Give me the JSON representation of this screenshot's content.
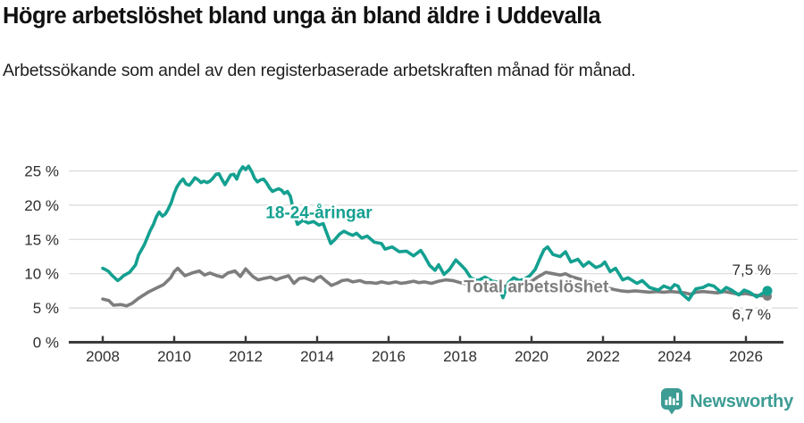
{
  "page": {
    "title": "Högre arbetslöshet bland unga än bland äldre i Uddevalla",
    "subtitle": "Arbetssökande som andel av den registerbaserade arbetskraften månad för månad."
  },
  "branding": {
    "name": "Newsworthy",
    "icon": "newsworthy-speech-bubble-barchart-icon",
    "color": "#3d9c94"
  },
  "chart_data": {
    "type": "line",
    "title": "Högre arbetslöshet bland unga än bland äldre i Uddevalla",
    "subtitle": "Arbetssökande som andel av den registerbaserade arbetskraften månad för månad.",
    "unit": "%",
    "grid": "horizontal",
    "legend": "inline-labels",
    "x_axis": {
      "ticks": [
        2008,
        2010,
        2012,
        2014,
        2016,
        2018,
        2020,
        2022,
        2024,
        2026
      ],
      "range": [
        2007.1,
        2027.1
      ]
    },
    "y_axis": {
      "ticks": [
        0,
        5,
        10,
        15,
        20,
        25
      ],
      "labels": [
        "0 %",
        "5 %",
        "10 %",
        "15 %",
        "20 %",
        "25 %"
      ],
      "range": [
        0,
        27
      ]
    },
    "series": [
      {
        "name": "Total arbetslöshet",
        "color": "#7d7d7d",
        "end_value": 6.7,
        "end_label": "6,7 %",
        "inline_label": {
          "x": 2020.13,
          "y": 8.1
        },
        "points": [
          [
            2008.0,
            6.3
          ],
          [
            2008.17,
            6.1
          ],
          [
            2008.3,
            5.4
          ],
          [
            2008.5,
            5.5
          ],
          [
            2008.67,
            5.3
          ],
          [
            2008.83,
            5.7
          ],
          [
            2009.0,
            6.4
          ],
          [
            2009.3,
            7.4
          ],
          [
            2009.7,
            8.4
          ],
          [
            2009.9,
            9.4
          ],
          [
            2010.0,
            10.3
          ],
          [
            2010.1,
            10.8
          ],
          [
            2010.3,
            9.7
          ],
          [
            2010.5,
            10.1
          ],
          [
            2010.7,
            10.4
          ],
          [
            2010.85,
            9.8
          ],
          [
            2011.0,
            10.1
          ],
          [
            2011.2,
            9.7
          ],
          [
            2011.35,
            9.5
          ],
          [
            2011.5,
            10.1
          ],
          [
            2011.7,
            10.4
          ],
          [
            2011.85,
            9.6
          ],
          [
            2012.0,
            10.7
          ],
          [
            2012.2,
            9.6
          ],
          [
            2012.35,
            9.1
          ],
          [
            2012.5,
            9.3
          ],
          [
            2012.7,
            9.5
          ],
          [
            2012.85,
            9.1
          ],
          [
            2013.0,
            9.4
          ],
          [
            2013.2,
            9.7
          ],
          [
            2013.35,
            8.6
          ],
          [
            2013.5,
            9.3
          ],
          [
            2013.65,
            9.4
          ],
          [
            2013.8,
            9.1
          ],
          [
            2013.9,
            8.9
          ],
          [
            2014.0,
            9.4
          ],
          [
            2014.1,
            9.6
          ],
          [
            2014.25,
            8.9
          ],
          [
            2014.4,
            8.3
          ],
          [
            2014.55,
            8.6
          ],
          [
            2014.7,
            9.0
          ],
          [
            2014.85,
            9.1
          ],
          [
            2015.0,
            8.8
          ],
          [
            2015.2,
            9.0
          ],
          [
            2015.35,
            8.7
          ],
          [
            2015.5,
            8.7
          ],
          [
            2015.65,
            8.6
          ],
          [
            2015.8,
            8.8
          ],
          [
            2016.0,
            8.6
          ],
          [
            2016.2,
            8.8
          ],
          [
            2016.35,
            8.6
          ],
          [
            2016.5,
            8.7
          ],
          [
            2016.7,
            8.9
          ],
          [
            2016.85,
            8.7
          ],
          [
            2017.0,
            8.8
          ],
          [
            2017.2,
            8.6
          ],
          [
            2017.4,
            8.9
          ],
          [
            2017.6,
            9.1
          ],
          [
            2017.8,
            9.0
          ],
          [
            2018.0,
            8.7
          ],
          [
            2018.2,
            8.5
          ],
          [
            2018.4,
            8.6
          ],
          [
            2018.6,
            8.4
          ],
          [
            2018.8,
            8.5
          ],
          [
            2019.0,
            8.3
          ],
          [
            2019.2,
            8.1
          ],
          [
            2019.4,
            8.4
          ],
          [
            2019.6,
            8.3
          ],
          [
            2019.8,
            8.6
          ],
          [
            2020.0,
            8.9
          ],
          [
            2020.2,
            9.6
          ],
          [
            2020.4,
            10.2
          ],
          [
            2020.6,
            10.0
          ],
          [
            2020.8,
            9.8
          ],
          [
            2020.95,
            10.0
          ],
          [
            2021.1,
            9.6
          ],
          [
            2021.3,
            9.3
          ],
          [
            2021.5,
            9.0
          ],
          [
            2021.7,
            8.7
          ],
          [
            2021.9,
            8.4
          ],
          [
            2022.1,
            8.0
          ],
          [
            2022.3,
            7.7
          ],
          [
            2022.5,
            7.5
          ],
          [
            2022.7,
            7.4
          ],
          [
            2022.9,
            7.5
          ],
          [
            2023.1,
            7.4
          ],
          [
            2023.3,
            7.3
          ],
          [
            2023.5,
            7.4
          ],
          [
            2023.7,
            7.3
          ],
          [
            2023.9,
            7.4
          ],
          [
            2024.1,
            7.3
          ],
          [
            2024.3,
            7.2
          ],
          [
            2024.45,
            7.0
          ],
          [
            2024.6,
            7.3
          ],
          [
            2024.8,
            7.4
          ],
          [
            2025.0,
            7.3
          ],
          [
            2025.2,
            7.2
          ],
          [
            2025.4,
            7.4
          ],
          [
            2025.6,
            7.2
          ],
          [
            2025.8,
            7.0
          ],
          [
            2026.0,
            7.1
          ],
          [
            2026.2,
            6.9
          ],
          [
            2026.4,
            6.8
          ],
          [
            2026.6,
            6.7
          ]
        ]
      },
      {
        "name": "18-24-åringar",
        "color": "#14a090",
        "end_value": 7.5,
        "end_label": "7,5 %",
        "inline_label": {
          "x": 2014.05,
          "y": 18.9
        },
        "points": [
          [
            2008.0,
            10.8
          ],
          [
            2008.08,
            10.6
          ],
          [
            2008.17,
            10.3
          ],
          [
            2008.25,
            9.8
          ],
          [
            2008.42,
            9.0
          ],
          [
            2008.5,
            9.3
          ],
          [
            2008.58,
            9.7
          ],
          [
            2008.75,
            10.2
          ],
          [
            2008.92,
            11.3
          ],
          [
            2009.0,
            12.7
          ],
          [
            2009.17,
            14.3
          ],
          [
            2009.33,
            16.3
          ],
          [
            2009.42,
            17.2
          ],
          [
            2009.5,
            18.3
          ],
          [
            2009.58,
            19.0
          ],
          [
            2009.67,
            18.4
          ],
          [
            2009.75,
            18.7
          ],
          [
            2009.83,
            19.4
          ],
          [
            2009.92,
            20.4
          ],
          [
            2010.0,
            21.7
          ],
          [
            2010.08,
            22.7
          ],
          [
            2010.17,
            23.4
          ],
          [
            2010.25,
            23.8
          ],
          [
            2010.33,
            23.1
          ],
          [
            2010.42,
            22.9
          ],
          [
            2010.5,
            23.4
          ],
          [
            2010.58,
            24.0
          ],
          [
            2010.67,
            23.7
          ],
          [
            2010.75,
            23.3
          ],
          [
            2010.83,
            23.5
          ],
          [
            2010.92,
            23.3
          ],
          [
            2011.0,
            23.5
          ],
          [
            2011.08,
            23.9
          ],
          [
            2011.17,
            24.5
          ],
          [
            2011.25,
            24.6
          ],
          [
            2011.33,
            23.8
          ],
          [
            2011.42,
            23.0
          ],
          [
            2011.5,
            23.7
          ],
          [
            2011.58,
            24.4
          ],
          [
            2011.67,
            24.5
          ],
          [
            2011.75,
            23.8
          ],
          [
            2011.83,
            24.9
          ],
          [
            2011.92,
            25.6
          ],
          [
            2012.0,
            25.2
          ],
          [
            2012.08,
            25.7
          ],
          [
            2012.17,
            24.9
          ],
          [
            2012.25,
            23.9
          ],
          [
            2012.33,
            23.4
          ],
          [
            2012.42,
            23.7
          ],
          [
            2012.5,
            23.8
          ],
          [
            2012.58,
            23.3
          ],
          [
            2012.67,
            22.5
          ],
          [
            2012.75,
            22.0
          ],
          [
            2012.83,
            22.2
          ],
          [
            2012.92,
            22.4
          ],
          [
            2013.0,
            22.2
          ],
          [
            2013.08,
            21.7
          ],
          [
            2013.17,
            22.0
          ],
          [
            2013.25,
            21.3
          ],
          [
            2013.35,
            19.0
          ],
          [
            2013.45,
            17.2
          ],
          [
            2013.6,
            17.8
          ],
          [
            2013.75,
            17.4
          ],
          [
            2013.9,
            17.6
          ],
          [
            2014.05,
            17.1
          ],
          [
            2014.17,
            17.3
          ],
          [
            2014.3,
            15.5
          ],
          [
            2014.38,
            14.4
          ],
          [
            2014.5,
            15.0
          ],
          [
            2014.63,
            15.8
          ],
          [
            2014.75,
            16.2
          ],
          [
            2014.9,
            15.8
          ],
          [
            2015.0,
            15.6
          ],
          [
            2015.1,
            15.9
          ],
          [
            2015.25,
            15.2
          ],
          [
            2015.4,
            15.5
          ],
          [
            2015.6,
            14.6
          ],
          [
            2015.8,
            14.4
          ],
          [
            2015.9,
            13.6
          ],
          [
            2016.1,
            13.9
          ],
          [
            2016.3,
            13.2
          ],
          [
            2016.5,
            13.3
          ],
          [
            2016.7,
            12.6
          ],
          [
            2016.9,
            13.4
          ],
          [
            2017.0,
            12.6
          ],
          [
            2017.15,
            11.2
          ],
          [
            2017.3,
            10.5
          ],
          [
            2017.4,
            11.3
          ],
          [
            2017.55,
            9.9
          ],
          [
            2017.7,
            10.6
          ],
          [
            2017.88,
            12.0
          ],
          [
            2018.0,
            11.4
          ],
          [
            2018.15,
            10.6
          ],
          [
            2018.3,
            9.4
          ],
          [
            2018.5,
            9.0
          ],
          [
            2018.7,
            9.5
          ],
          [
            2018.9,
            8.9
          ],
          [
            2019.05,
            8.8
          ],
          [
            2019.2,
            6.5
          ],
          [
            2019.35,
            8.7
          ],
          [
            2019.5,
            9.4
          ],
          [
            2019.65,
            9.0
          ],
          [
            2019.8,
            9.2
          ],
          [
            2019.95,
            9.7
          ],
          [
            2020.1,
            10.6
          ],
          [
            2020.25,
            12.4
          ],
          [
            2020.35,
            13.5
          ],
          [
            2020.45,
            13.9
          ],
          [
            2020.6,
            12.8
          ],
          [
            2020.8,
            12.5
          ],
          [
            2020.95,
            13.2
          ],
          [
            2021.1,
            11.7
          ],
          [
            2021.3,
            12.1
          ],
          [
            2021.45,
            11.1
          ],
          [
            2021.6,
            11.7
          ],
          [
            2021.8,
            10.9
          ],
          [
            2021.95,
            11.2
          ],
          [
            2022.05,
            11.7
          ],
          [
            2022.2,
            10.3
          ],
          [
            2022.35,
            10.8
          ],
          [
            2022.55,
            9.1
          ],
          [
            2022.7,
            9.4
          ],
          [
            2022.95,
            8.6
          ],
          [
            2023.1,
            9.0
          ],
          [
            2023.3,
            8.0
          ],
          [
            2023.55,
            7.6
          ],
          [
            2023.7,
            8.2
          ],
          [
            2023.9,
            7.8
          ],
          [
            2024.0,
            8.4
          ],
          [
            2024.1,
            8.2
          ],
          [
            2024.2,
            7.1
          ],
          [
            2024.4,
            6.2
          ],
          [
            2024.6,
            7.8
          ],
          [
            2024.8,
            8.0
          ],
          [
            2024.95,
            8.4
          ],
          [
            2025.1,
            8.2
          ],
          [
            2025.3,
            7.3
          ],
          [
            2025.45,
            8.0
          ],
          [
            2025.6,
            7.6
          ],
          [
            2025.8,
            6.9
          ],
          [
            2025.95,
            7.6
          ],
          [
            2026.1,
            7.3
          ],
          [
            2026.3,
            6.6
          ],
          [
            2026.45,
            7.1
          ],
          [
            2026.6,
            7.5
          ]
        ]
      }
    ]
  }
}
